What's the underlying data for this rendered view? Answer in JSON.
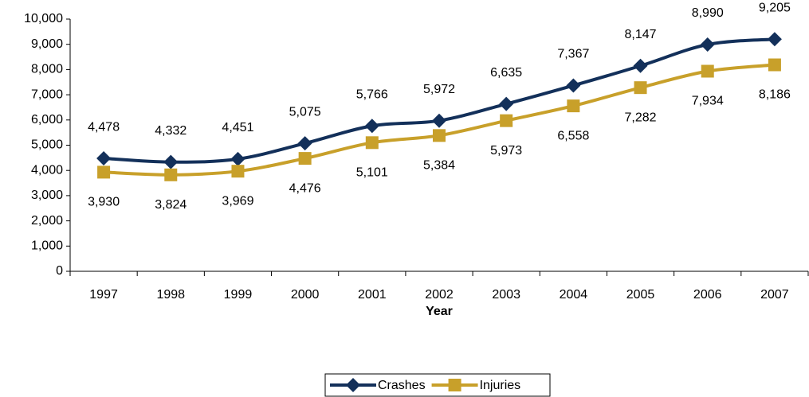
{
  "chart_data": {
    "type": "line",
    "categories": [
      "1997",
      "1998",
      "1999",
      "2000",
      "2001",
      "2002",
      "2003",
      "2004",
      "2005",
      "2006",
      "2007"
    ],
    "x_label": "Year",
    "series": [
      {
        "name": "Crashes",
        "color": "#13305a",
        "marker": "diamond",
        "values": [
          4478,
          4332,
          4451,
          5075,
          5766,
          5972,
          6635,
          7367,
          8147,
          8990,
          9205
        ],
        "value_labels": [
          "4,478",
          "4,332",
          "4,451",
          "5,075",
          "5,766",
          "5,972",
          "6,635",
          "7,367",
          "8,147",
          "8,990",
          "9,205"
        ]
      },
      {
        "name": "Injuries",
        "color": "#c8a02a",
        "marker": "square",
        "values": [
          3930,
          3824,
          3969,
          4476,
          5101,
          5384,
          5973,
          6558,
          7282,
          7934,
          8186
        ],
        "value_labels": [
          "3,930",
          "3,824",
          "3,969",
          "4,476",
          "5,101",
          "5,384",
          "5,973",
          "6,558",
          "7,282",
          "7,934",
          "8,186"
        ]
      }
    ],
    "ylim": [
      0,
      10000
    ],
    "yticks": [
      {
        "value": 0,
        "label": "0"
      },
      {
        "value": 1000,
        "label": "1,000"
      },
      {
        "value": 2000,
        "label": "2,000"
      },
      {
        "value": 3000,
        "label": "3,000"
      },
      {
        "value": 4000,
        "label": "4,000"
      },
      {
        "value": 5000,
        "label": "5,000"
      },
      {
        "value": 6000,
        "label": "6,000"
      },
      {
        "value": 7000,
        "label": "7,000"
      },
      {
        "value": 8000,
        "label": "8,000"
      },
      {
        "value": 9000,
        "label": "9,000"
      },
      {
        "value": 10000,
        "label": "10,000"
      }
    ],
    "legend": "bottom"
  }
}
